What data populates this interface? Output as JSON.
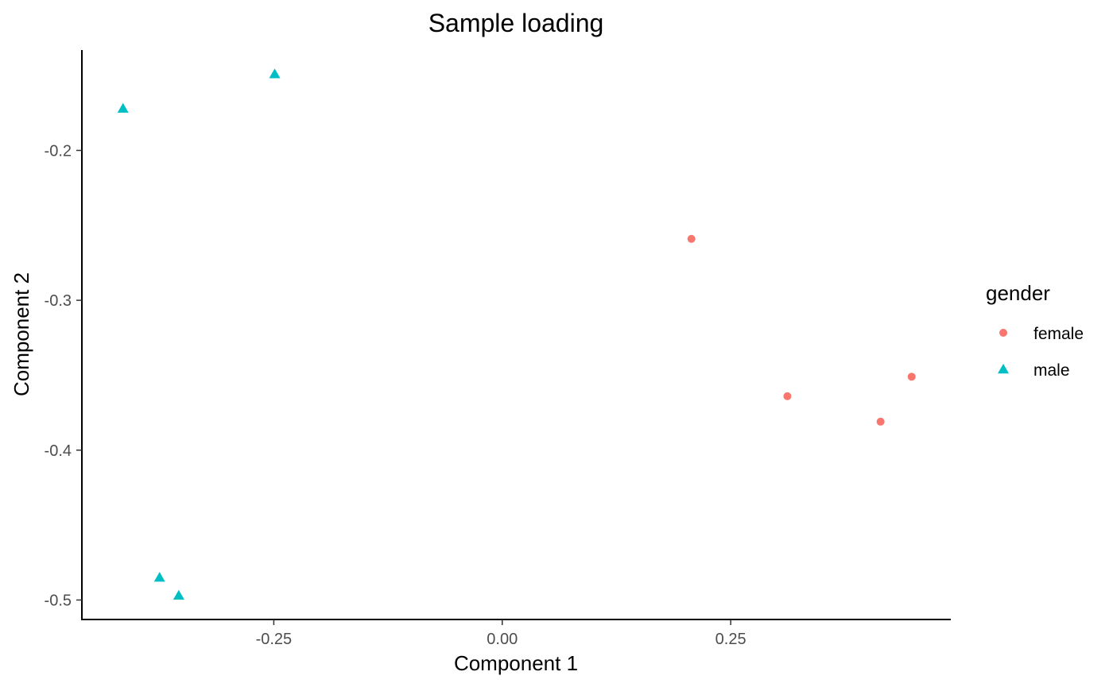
{
  "chart_data": {
    "type": "scatter",
    "title": "Sample loading",
    "xlabel": "Component 1",
    "ylabel": "Component 2",
    "xlim": [
      -0.46,
      0.49
    ],
    "ylim": [
      -0.513,
      -0.133
    ],
    "x_ticks": [
      -0.25,
      0.0,
      0.25
    ],
    "x_tick_labels": [
      "-0.25",
      "0.00",
      "0.25"
    ],
    "y_ticks": [
      -0.2,
      -0.3,
      -0.4,
      -0.5
    ],
    "y_tick_labels": [
      "-0.2",
      "-0.3",
      "-0.4",
      "-0.5"
    ],
    "grid": false,
    "legend": {
      "title": "gender",
      "placement": "right"
    },
    "series": [
      {
        "name": "female",
        "color": "#F8766D",
        "shape": "circle",
        "points": [
          {
            "x": 0.207,
            "y": -0.259
          },
          {
            "x": 0.312,
            "y": -0.364
          },
          {
            "x": 0.414,
            "y": -0.381
          },
          {
            "x": 0.448,
            "y": -0.351
          }
        ]
      },
      {
        "name": "male",
        "color": "#00BFC4",
        "shape": "triangle",
        "points": [
          {
            "x": -0.415,
            "y": -0.172
          },
          {
            "x": -0.249,
            "y": -0.149
          },
          {
            "x": -0.375,
            "y": -0.485
          },
          {
            "x": -0.354,
            "y": -0.497
          }
        ]
      }
    ]
  }
}
